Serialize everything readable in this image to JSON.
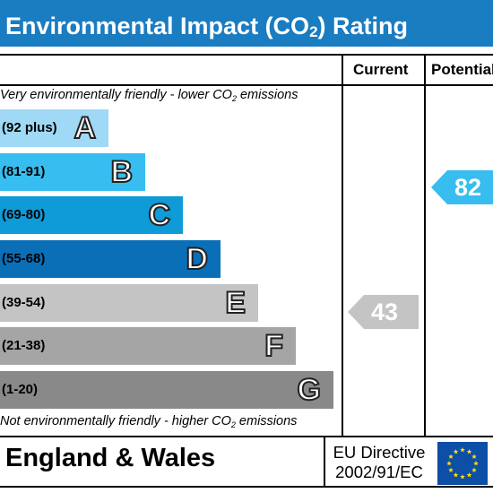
{
  "header": {
    "title_prefix": "Environmental Impact (CO",
    "title_sub": "2",
    "title_suffix": ") Rating"
  },
  "columns": {
    "current": "Current",
    "potential": "Potential"
  },
  "captions": {
    "top_prefix": "Very environmentally friendly - lower CO",
    "top_sub": "2",
    "top_suffix": " emissions",
    "bottom_prefix": "Not environmentally friendly - higher CO",
    "bottom_sub": "2",
    "bottom_suffix": " emissions"
  },
  "bands": [
    {
      "range": "(92 plus)",
      "letter": "A",
      "color": "#9fd9f6"
    },
    {
      "range": "(81-91)",
      "letter": "B",
      "color": "#38bdf0"
    },
    {
      "range": "(69-80)",
      "letter": "C",
      "color": "#0f9ad8"
    },
    {
      "range": "(55-68)",
      "letter": "D",
      "color": "#0b6fb8"
    },
    {
      "range": "(39-54)",
      "letter": "E",
      "color": "#c4c4c4"
    },
    {
      "range": "(21-38)",
      "letter": "F",
      "color": "#a5a5a5"
    },
    {
      "range": "(1-20)",
      "letter": "G",
      "color": "#898989"
    }
  ],
  "ratings": {
    "current": {
      "value": "43",
      "band": "E",
      "color": "#c4c4c4"
    },
    "potential": {
      "value": "82",
      "band": "B",
      "color": "#38bdf0"
    }
  },
  "footer": {
    "region": "England & Wales",
    "directive_line1": "EU Directive",
    "directive_line2": "2002/91/EC",
    "flag_icon": "eu-flag-icon"
  }
}
